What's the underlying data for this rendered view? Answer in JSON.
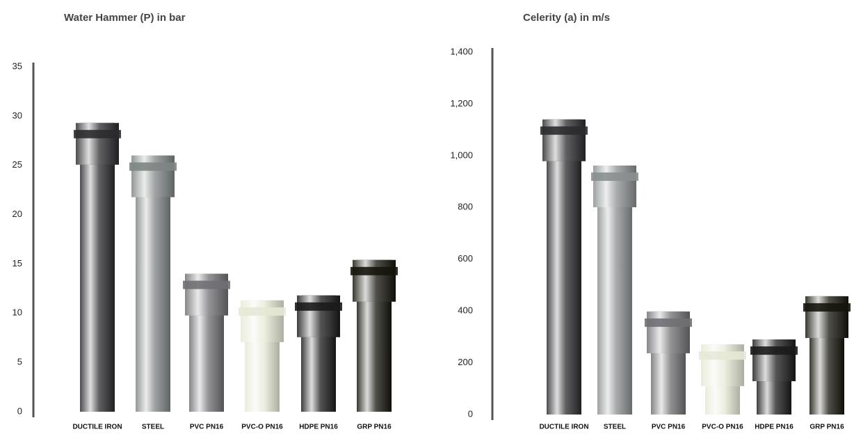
{
  "chart_data": [
    {
      "type": "bar",
      "title": "Water Hammer (P) in bar",
      "categories": [
        "DUCTILE IRON",
        "STEEL",
        "PVC PN16",
        "PVC-O PN16",
        "HDPE PN16",
        "GRP PN16"
      ],
      "values": [
        29.3,
        26,
        14,
        11.3,
        11.8,
        15.4
      ],
      "colors": [
        "#2b2b2e",
        "#7e8584",
        "#707074",
        "#e6e9d6",
        "#1b1b1b",
        "#15150c"
      ],
      "ylim": [
        0,
        35
      ],
      "yticks": [
        0,
        5,
        10,
        15,
        20,
        25,
        30,
        35
      ]
    },
    {
      "type": "bar",
      "title": "Celerity (a) in m/s",
      "categories": [
        "DUCTILE IRON",
        "STEEL",
        "PVC PN16",
        "PVC-O PN16",
        "HDPE PN16",
        "GRP PN16"
      ],
      "values": [
        1140,
        962,
        398,
        271,
        290,
        457
      ],
      "colors": [
        "#2b2b2e",
        "#8a8f8f",
        "#707074",
        "#e6e9d6",
        "#1b1b1b",
        "#15150c"
      ],
      "ylim": [
        0,
        1400
      ],
      "yticks": [
        0,
        200,
        400,
        600,
        800,
        {
          "value": 1000,
          "label": "1,000"
        },
        {
          "value": 1200,
          "label": "1,200"
        },
        {
          "value": 1400,
          "label": "1,400"
        }
      ]
    }
  ]
}
